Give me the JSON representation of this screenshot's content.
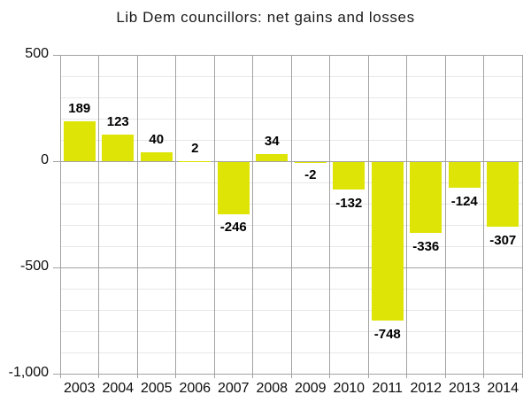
{
  "page": {
    "background": "#ffffff"
  },
  "chart_data": {
    "type": "bar",
    "title": "Lib Dem councillors: net gains and losses",
    "categories": [
      "2003",
      "2004",
      "2005",
      "2006",
      "2007",
      "2008",
      "2009",
      "2010",
      "2011",
      "2012",
      "2013",
      "2014"
    ],
    "values": [
      189,
      123,
      40,
      2,
      -246,
      34,
      -2,
      -132,
      -748,
      -336,
      -124,
      -307
    ],
    "value_labels": [
      "189",
      "123",
      "40",
      "2",
      "-246",
      "34",
      "-2",
      "-132",
      "-748",
      "-336",
      "-124",
      "-307"
    ],
    "xlabel": "",
    "ylabel": "",
    "ylim": [
      -1000,
      500
    ],
    "yticks": [
      500,
      0,
      -500,
      -1000
    ],
    "ytick_labels": [
      "500",
      "0",
      "-500",
      "-1,000"
    ],
    "y_minor_step": 100,
    "grid": "both",
    "legend": "none",
    "bar_color": "#dee405",
    "label_color": "#000000",
    "grid_minor_color": "#e8e8e8",
    "grid_major_color": "#a3a3a3",
    "axis_text_color": "#0d0d0d"
  }
}
